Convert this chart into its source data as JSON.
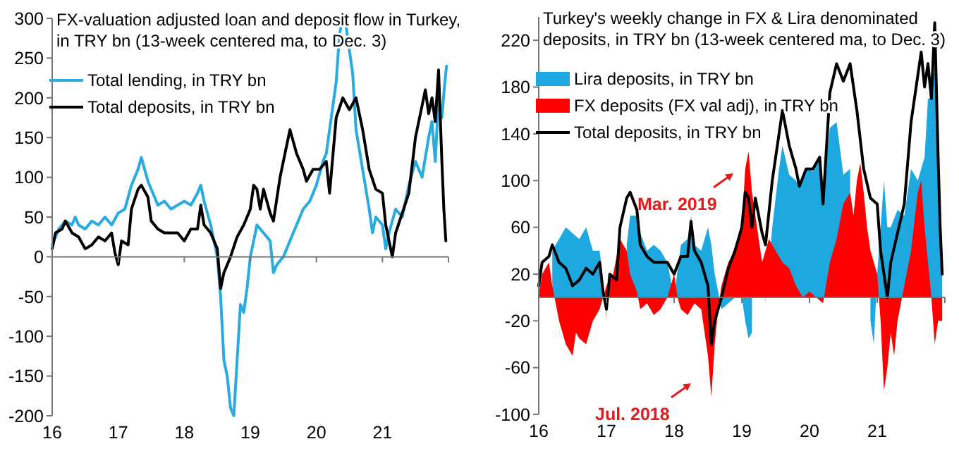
{
  "chart_data": [
    {
      "type": "line",
      "title": "FX-valuation adjusted loan and deposit flow in Turkey, in TRY bn (13-week centered ma, to Dec. 3)",
      "xlim": [
        16,
        22
      ],
      "xticks": [
        16,
        17,
        18,
        19,
        20,
        21,
        {
          "value": 22,
          "label": null
        }
      ],
      "ylim": [
        -200,
        300
      ],
      "yticks": [
        -200,
        -150,
        -100,
        -50,
        0,
        50,
        100,
        150,
        200,
        250,
        300
      ],
      "legend": "top left",
      "series": [
        {
          "name": "Total lending, in TRY bn",
          "color": "#29abe2",
          "x": [
            16.0,
            16.1,
            16.2,
            16.3,
            16.35,
            16.4,
            16.5,
            16.6,
            16.7,
            16.8,
            16.9,
            17.0,
            17.1,
            17.2,
            17.3,
            17.35,
            17.45,
            17.5,
            17.6,
            17.7,
            17.8,
            17.9,
            18.0,
            18.1,
            18.2,
            18.25,
            18.3,
            18.4,
            18.5,
            18.55,
            18.6,
            18.65,
            18.7,
            18.75,
            18.8,
            18.85,
            18.9,
            18.95,
            19.0,
            19.1,
            19.2,
            19.3,
            19.35,
            19.4,
            19.5,
            19.6,
            19.7,
            19.8,
            19.9,
            20.0,
            20.1,
            20.15,
            20.3,
            20.35,
            20.4,
            20.45,
            20.5,
            20.55,
            20.6,
            20.7,
            20.8,
            20.85,
            20.9,
            21.0,
            21.05,
            21.1,
            21.2,
            21.3,
            21.4,
            21.5,
            21.6,
            21.7,
            21.75,
            21.8,
            21.85,
            21.9,
            21.94,
            21.97
          ],
          "values": [
            15,
            35,
            45,
            40,
            50,
            40,
            35,
            45,
            40,
            50,
            40,
            55,
            60,
            90,
            110,
            125,
            95,
            85,
            65,
            70,
            60,
            65,
            70,
            65,
            80,
            90,
            70,
            40,
            0,
            -50,
            -130,
            -150,
            -190,
            -200,
            -130,
            -60,
            -70,
            -40,
            0,
            40,
            30,
            20,
            -20,
            -10,
            0,
            20,
            40,
            60,
            70,
            90,
            120,
            130,
            220,
            280,
            300,
            290,
            260,
            230,
            160,
            110,
            60,
            30,
            50,
            40,
            10,
            30,
            60,
            50,
            90,
            120,
            100,
            150,
            170,
            120,
            200,
            175,
            215,
            240
          ]
        },
        {
          "name": "Total deposits, in TRY bn",
          "color": "#000000",
          "x": [
            16.0,
            16.05,
            16.15,
            16.2,
            16.3,
            16.4,
            16.5,
            16.6,
            16.7,
            16.8,
            16.9,
            16.95,
            17.0,
            17.05,
            17.15,
            17.2,
            17.3,
            17.35,
            17.45,
            17.5,
            17.6,
            17.7,
            17.8,
            17.9,
            18.0,
            18.1,
            18.2,
            18.25,
            18.3,
            18.4,
            18.5,
            18.55,
            18.6,
            18.7,
            18.8,
            18.9,
            19.0,
            19.05,
            19.1,
            19.15,
            19.2,
            19.3,
            19.35,
            19.45,
            19.55,
            19.6,
            19.7,
            19.8,
            19.85,
            19.95,
            20.05,
            20.15,
            20.2,
            20.3,
            20.4,
            20.5,
            20.6,
            20.7,
            20.8,
            20.9,
            21.0,
            21.05,
            21.1,
            21.15,
            21.2,
            21.3,
            21.4,
            21.5,
            21.6,
            21.65,
            21.7,
            21.75,
            21.8,
            21.85,
            21.9,
            21.93,
            21.96
          ],
          "values": [
            10,
            30,
            35,
            45,
            30,
            25,
            10,
            15,
            25,
            20,
            30,
            5,
            -10,
            20,
            15,
            60,
            85,
            90,
            75,
            45,
            35,
            30,
            30,
            30,
            20,
            35,
            35,
            65,
            40,
            30,
            10,
            -40,
            -20,
            0,
            25,
            40,
            60,
            90,
            85,
            60,
            85,
            55,
            45,
            100,
            140,
            160,
            130,
            110,
            95,
            110,
            110,
            120,
            80,
            175,
            200,
            185,
            200,
            160,
            110,
            85,
            80,
            40,
            20,
            0,
            30,
            55,
            80,
            150,
            190,
            210,
            180,
            200,
            170,
            235,
            120,
            60,
            20
          ]
        }
      ]
    },
    {
      "type": "area",
      "title": "Turkey's weekly change in FX & Lira denominated deposits, in TRY bn (13-week centered ma, to Dec. 3)",
      "xlim": [
        16,
        22
      ],
      "xticks": [
        16,
        17,
        18,
        19,
        20,
        21,
        {
          "value": 22,
          "label": null
        }
      ],
      "ylim": [
        -100,
        240
      ],
      "yticks": [
        -100,
        -60,
        -20,
        20,
        60,
        100,
        140,
        180,
        220
      ],
      "legend": "top left",
      "annotations": [
        "Mar. 2019",
        "Jul. 2018"
      ],
      "series": [
        {
          "name": "Lira deposits, in TRY bn",
          "color": "#1ea8e0",
          "x": [
            16.0,
            16.05,
            16.15,
            16.2,
            16.3,
            16.4,
            16.5,
            16.6,
            16.7,
            16.8,
            16.9,
            16.95,
            17.0,
            17.05,
            17.15,
            17.2,
            17.3,
            17.35,
            17.45,
            17.5,
            17.6,
            17.7,
            17.8,
            17.9,
            18.0,
            18.1,
            18.2,
            18.25,
            18.3,
            18.4,
            18.5,
            18.55,
            18.6,
            18.7,
            18.8,
            18.9,
            19.0,
            19.05,
            19.1,
            19.15,
            19.2,
            19.3,
            19.35,
            19.45,
            19.55,
            19.6,
            19.7,
            19.8,
            19.85,
            19.95,
            20.05,
            20.15,
            20.2,
            20.3,
            20.4,
            20.5,
            20.6,
            20.7,
            20.8,
            20.9,
            20.95,
            21.0,
            21.05,
            21.1,
            21.15,
            21.2,
            21.3,
            21.4,
            21.5,
            21.6,
            21.65,
            21.7,
            21.75,
            21.8,
            21.85,
            21.9,
            21.93,
            21.96
          ],
          "values": [
            10,
            15,
            null,
            40,
            50,
            60,
            55,
            50,
            60,
            40,
            40,
            15,
            -20,
            null,
            null,
            null,
            45,
            70,
            70,
            55,
            40,
            45,
            40,
            30,
            0,
            45,
            50,
            70,
            45,
            40,
            60,
            45,
            20,
            -10,
            -5,
            0,
            0,
            -20,
            -35,
            -30,
            null,
            null,
            -5,
            60,
            110,
            130,
            105,
            100,
            95,
            110,
            108,
            120,
            85,
            145,
            150,
            105,
            110,
            null,
            null,
            -20,
            -40,
            20,
            60,
            100,
            60,
            60,
            75,
            70,
            110,
            100,
            110,
            120,
            170,
            170,
            200,
            100,
            80,
            40
          ]
        },
        {
          "name": "FX deposits (FX val adj), in TRY bn",
          "color": "#ff0000",
          "x": [
            16.0,
            16.05,
            16.15,
            16.2,
            16.3,
            16.4,
            16.5,
            16.55,
            16.6,
            16.7,
            16.8,
            16.9,
            17.0,
            17.1,
            17.2,
            17.3,
            17.35,
            17.45,
            17.5,
            17.6,
            17.7,
            17.8,
            17.9,
            18.0,
            18.05,
            18.1,
            18.2,
            18.3,
            18.4,
            18.45,
            18.5,
            18.55,
            18.6,
            18.65,
            18.7,
            18.8,
            18.9,
            19.0,
            19.05,
            19.1,
            19.15,
            19.2,
            19.3,
            19.4,
            19.5,
            19.6,
            19.7,
            19.8,
            19.9,
            20.0,
            20.1,
            20.2,
            20.3,
            20.4,
            20.5,
            20.6,
            20.65,
            20.7,
            20.75,
            20.8,
            20.85,
            20.9,
            21.0,
            21.05,
            21.1,
            21.15,
            21.2,
            21.25,
            21.3,
            21.4,
            21.5,
            21.6,
            21.65,
            21.7,
            21.75,
            21.8,
            21.85,
            21.9,
            21.96
          ],
          "values": [
            0,
            20,
            30,
            10,
            -20,
            -40,
            -50,
            -30,
            -35,
            -40,
            -20,
            -10,
            10,
            20,
            50,
            40,
            20,
            5,
            -10,
            -5,
            -15,
            -10,
            0,
            20,
            0,
            -10,
            -15,
            -5,
            -10,
            -30,
            -50,
            -85,
            -40,
            -10,
            10,
            30,
            40,
            60,
            110,
            125,
            90,
            70,
            30,
            50,
            40,
            30,
            25,
            10,
            0,
            5,
            0,
            -5,
            30,
            50,
            80,
            90,
            70,
            100,
            115,
            90,
            60,
            40,
            20,
            -20,
            -80,
            -60,
            -30,
            -50,
            -20,
            10,
            40,
            90,
            100,
            60,
            30,
            0,
            -40,
            -20,
            -20
          ]
        },
        {
          "type": "line",
          "name": "Total deposits, in TRY bn",
          "color": "#000000",
          "x": [
            16.0,
            16.05,
            16.15,
            16.2,
            16.3,
            16.4,
            16.5,
            16.6,
            16.7,
            16.8,
            16.9,
            16.95,
            17.0,
            17.05,
            17.15,
            17.2,
            17.3,
            17.35,
            17.45,
            17.5,
            17.6,
            17.7,
            17.8,
            17.9,
            18.0,
            18.1,
            18.2,
            18.25,
            18.3,
            18.4,
            18.5,
            18.55,
            18.6,
            18.7,
            18.8,
            18.9,
            19.0,
            19.05,
            19.1,
            19.15,
            19.2,
            19.3,
            19.35,
            19.45,
            19.55,
            19.6,
            19.7,
            19.8,
            19.85,
            19.95,
            20.05,
            20.15,
            20.2,
            20.3,
            20.4,
            20.5,
            20.6,
            20.7,
            20.8,
            20.9,
            21.0,
            21.05,
            21.1,
            21.15,
            21.2,
            21.3,
            21.4,
            21.5,
            21.6,
            21.65,
            21.7,
            21.75,
            21.8,
            21.85,
            21.9,
            21.93,
            21.96
          ],
          "values": [
            10,
            30,
            35,
            45,
            30,
            25,
            10,
            15,
            25,
            20,
            30,
            5,
            -10,
            20,
            15,
            60,
            85,
            90,
            75,
            45,
            35,
            30,
            30,
            30,
            20,
            35,
            35,
            65,
            40,
            30,
            10,
            -40,
            -20,
            0,
            25,
            40,
            60,
            90,
            85,
            60,
            85,
            55,
            45,
            100,
            140,
            160,
            130,
            110,
            95,
            110,
            110,
            120,
            80,
            175,
            200,
            185,
            200,
            160,
            110,
            85,
            80,
            40,
            20,
            0,
            30,
            55,
            80,
            150,
            190,
            210,
            180,
            200,
            170,
            235,
            120,
            60,
            20
          ]
        }
      ]
    }
  ]
}
